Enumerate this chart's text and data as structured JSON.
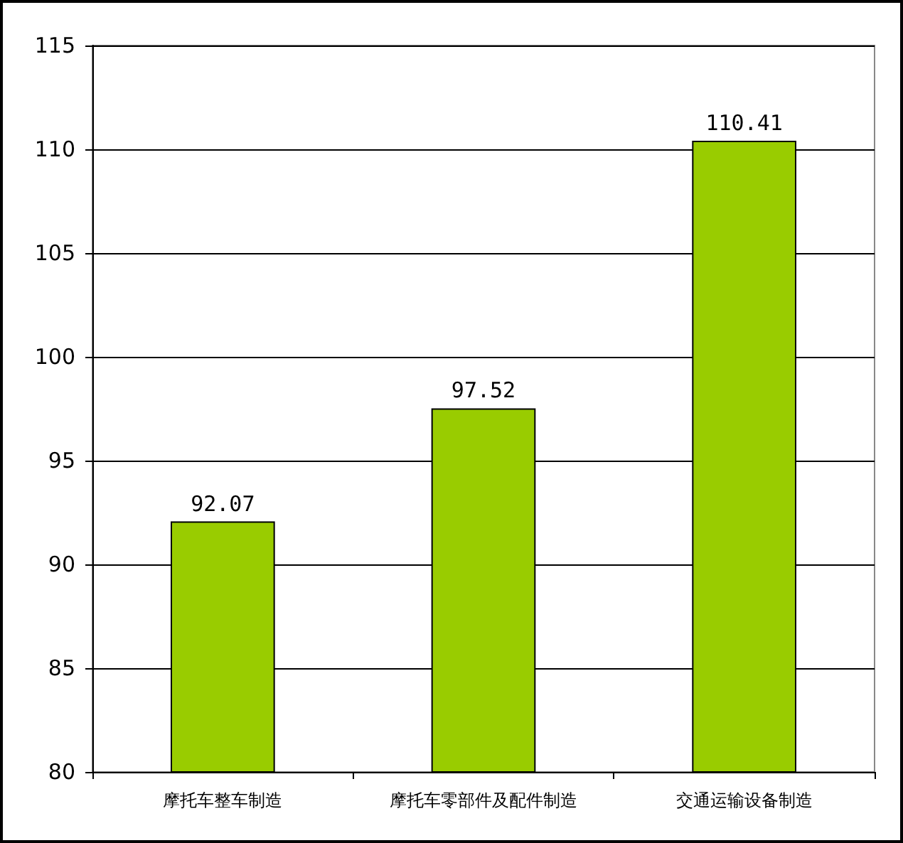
{
  "chart_data": {
    "type": "bar",
    "categories": [
      "摩托车整车制造",
      "摩托车零部件及配件制造",
      "交通运输设备制造"
    ],
    "values": [
      92.07,
      97.52,
      110.41
    ],
    "color": "#99cc00",
    "ylim": [
      80,
      115
    ],
    "yticks": [
      80,
      85,
      90,
      95,
      100,
      105,
      110,
      115
    ],
    "grid": "y",
    "data_labels": true
  }
}
